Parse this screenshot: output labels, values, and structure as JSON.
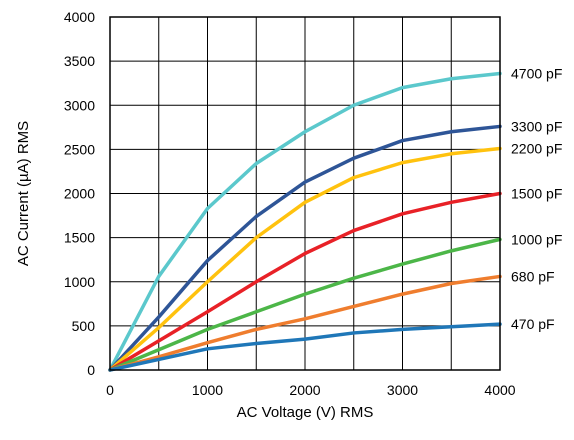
{
  "chart_data": {
    "type": "line",
    "xlabel": "AC Voltage (V) RMS",
    "ylabel": "AC Current (µA) RMS",
    "xlim": [
      0,
      4000
    ],
    "ylim": [
      0,
      4000
    ],
    "x_ticks": [
      "0",
      "1000",
      "2000",
      "3000",
      "4000"
    ],
    "y_ticks": [
      "0",
      "500",
      "1000",
      "1500",
      "2000",
      "2500",
      "3000",
      "3500",
      "4000"
    ],
    "x_grid": [
      0,
      500,
      1000,
      1500,
      2000,
      2500,
      3000,
      3500,
      4000
    ],
    "y_grid": [
      0,
      500,
      1000,
      1500,
      2000,
      2500,
      3000,
      3500,
      4000
    ],
    "grid": true,
    "legend_placement": "right, labels beside line ends",
    "x": [
      0,
      500,
      1000,
      1500,
      2000,
      2500,
      3000,
      3500,
      4000
    ],
    "series": [
      {
        "name": "4700 pF",
        "color": "#5bc8cc",
        "values": [
          0,
          1060,
          1830,
          2340,
          2700,
          3000,
          3200,
          3300,
          3360
        ]
      },
      {
        "name": "3300 pF",
        "color": "#2e5597",
        "values": [
          0,
          600,
          1240,
          1740,
          2130,
          2400,
          2600,
          2700,
          2760
        ]
      },
      {
        "name": "2200 pF",
        "color": "#ffc20e",
        "values": [
          0,
          480,
          1000,
          1500,
          1900,
          2180,
          2350,
          2450,
          2510
        ]
      },
      {
        "name": "1500 pF",
        "color": "#e82127",
        "values": [
          0,
          330,
          660,
          1000,
          1320,
          1580,
          1770,
          1900,
          2000
        ]
      },
      {
        "name": "1000 pF",
        "color": "#4cb648",
        "values": [
          0,
          230,
          460,
          660,
          860,
          1040,
          1200,
          1350,
          1480
        ]
      },
      {
        "name": "680 pF",
        "color": "#ef7d2e",
        "values": [
          0,
          150,
          310,
          460,
          580,
          720,
          860,
          980,
          1060
        ]
      },
      {
        "name": "470 pF",
        "color": "#1f77b8",
        "values": [
          0,
          120,
          240,
          300,
          350,
          420,
          460,
          490,
          520
        ]
      }
    ]
  }
}
